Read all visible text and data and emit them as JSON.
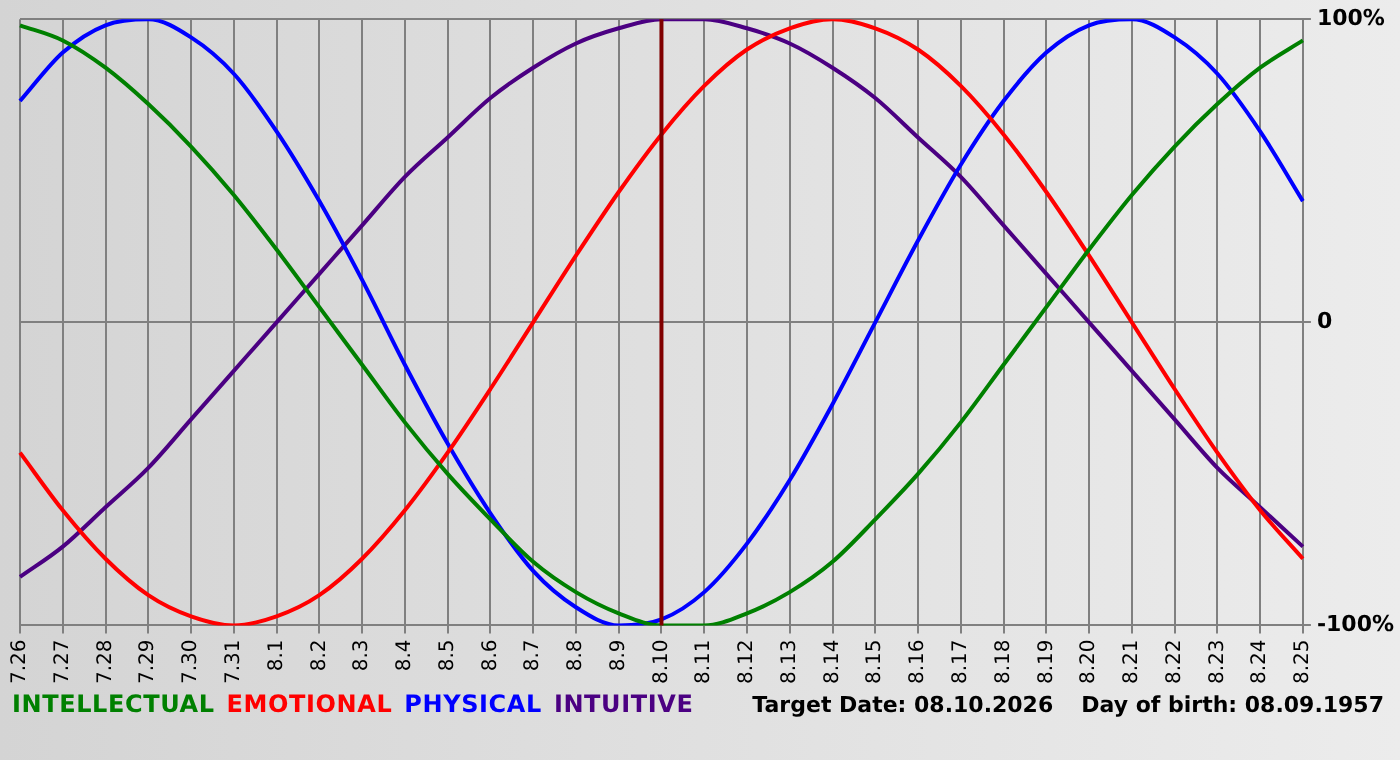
{
  "chart_data": {
    "type": "line",
    "categories": [
      "7.26",
      "7.27",
      "7.28",
      "7.29",
      "7.30",
      "7.31",
      "8.1",
      "8.2",
      "8.3",
      "8.4",
      "8.5",
      "8.6",
      "8.7",
      "8.8",
      "8.9",
      "8.10",
      "8.11",
      "8.12",
      "8.13",
      "8.14",
      "8.15",
      "8.16",
      "8.17",
      "8.18",
      "8.19",
      "8.20",
      "8.21",
      "8.22",
      "8.23",
      "8.24",
      "8.25"
    ],
    "series": [
      {
        "name": "INTELLECTUAL",
        "color": "#008000",
        "values": [
          98,
          93,
          84,
          72,
          58,
          42,
          24,
          5,
          -14,
          -33,
          -50,
          -65,
          -79,
          -89,
          -96,
          -100,
          -100,
          -96,
          -89,
          -79,
          -65,
          -50,
          -33,
          -14,
          5,
          24,
          42,
          58,
          72,
          84,
          93
        ]
      },
      {
        "name": "EMOTIONAL",
        "color": "#ff0000",
        "values": [
          -43,
          -62,
          -78,
          -90,
          -97,
          -100,
          -97,
          -90,
          -78,
          -62,
          -43,
          -22,
          0,
          22,
          43,
          62,
          78,
          90,
          97,
          100,
          97,
          90,
          78,
          62,
          43,
          22,
          0,
          -22,
          -43,
          -62,
          -78
        ]
      },
      {
        "name": "PHYSICAL",
        "color": "#0000ff",
        "values": [
          73,
          89,
          98,
          100,
          94,
          82,
          63,
          40,
          14,
          -14,
          -40,
          -63,
          -82,
          -94,
          -100,
          -98,
          -89,
          -73,
          -52,
          -27,
          0,
          27,
          52,
          73,
          89,
          98,
          100,
          94,
          82,
          63,
          40
        ]
      },
      {
        "name": "INTUITIVE",
        "color": "#4b0082",
        "values": [
          -84,
          -74,
          -61,
          -48,
          -32,
          -16,
          0,
          16,
          32,
          48,
          61,
          74,
          84,
          92,
          97,
          100,
          100,
          97,
          92,
          84,
          74,
          61,
          48,
          32,
          16,
          0,
          -16,
          -32,
          -48,
          -61,
          -74
        ]
      }
    ],
    "ylim": [
      -100,
      100
    ],
    "yticks": [
      {
        "value": -100,
        "label": "-100%"
      },
      0,
      {
        "value": 100,
        "label": "100%"
      }
    ],
    "grid": true,
    "legend": "bottom",
    "marker": "none",
    "ref_lines": [
      {
        "axis": "x",
        "value": "8.10",
        "color": "#800000"
      }
    ],
    "annotations": [
      "Target Date: 08.10.2026",
      "Day of birth: 08.09.1957"
    ]
  }
}
